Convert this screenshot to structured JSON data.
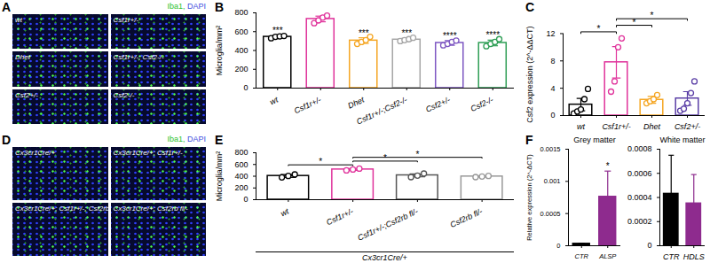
{
  "images": [
    {
      "panel_label": "A",
      "stain": [
        {
          "text": "Iba1,",
          "color": "#2fbf2f"
        },
        {
          "text": "DAPI",
          "color": "#3f4fe0"
        }
      ],
      "tiles": [
        "wt",
        "Csf1r+/-",
        "Dhet",
        "Csf1r+/-; Csf2-/-",
        "Csf2+/-",
        "Csf2-/-"
      ]
    },
    {
      "panel_label": "D",
      "stain": [
        {
          "text": "Iba1,",
          "color": "#2fbf2f"
        },
        {
          "text": "DAPI",
          "color": "#3f4fe0"
        }
      ],
      "tiles": [
        "Cx3cr1Cre/+",
        "Cx3cr1Cre/+; Csf1r+/-",
        "Cx3cr1Cre/+; Csf1r+/-; Csf2rb fl/-",
        "Cx3cr1Cre/+; Csf2rb fl/-"
      ]
    }
  ],
  "chart_data": [
    {
      "panel_label": "B",
      "type": "bar",
      "categories": [
        "wt",
        "Csf1r+/-",
        "Dhet",
        "Csf1r+/-;Csf2-/-",
        "Csf2+/-",
        "Csf2-/-"
      ],
      "values": [
        545,
        735,
        505,
        515,
        480,
        480
      ],
      "errors": [
        15,
        30,
        30,
        15,
        25,
        30
      ],
      "points": [
        [
          530,
          545,
          550,
          555
        ],
        [
          690,
          720,
          750,
          770
        ],
        [
          470,
          490,
          510,
          545
        ],
        [
          500,
          510,
          520,
          535
        ],
        [
          455,
          470,
          490,
          505
        ],
        [
          445,
          470,
          490,
          520
        ]
      ],
      "colors": [
        "#000000",
        "#e0339b",
        "#f5a623",
        "#a6a6a6",
        "#7e57c2",
        "#2e9e55"
      ],
      "significance": [
        "***",
        null,
        "***",
        "***",
        "****",
        "****"
      ],
      "y_label": "Microglia/mm²",
      "ylim": [
        0,
        800
      ],
      "yticks": [
        0,
        200,
        400,
        600,
        800
      ]
    },
    {
      "panel_label": "C",
      "type": "bar",
      "categories": [
        "wt",
        "Csf1r+/-",
        "Dhet",
        "Csf2+/-"
      ],
      "values": [
        1.6,
        7.8,
        2.3,
        2.5
      ],
      "errors": [
        0.9,
        2.3,
        0.5,
        1.0
      ],
      "points": [
        [
          0.3,
          0.6,
          0.9,
          2.4,
          3.9
        ],
        [
          3.5,
          5,
          10,
          11.3
        ],
        [
          1.8,
          2.1,
          2.4,
          3.0
        ],
        [
          0.7,
          1.0,
          1.8,
          3.3,
          5.0
        ]
      ],
      "colors": [
        "#000000",
        "#e0339b",
        "#f5a623",
        "#5b3fa6"
      ],
      "comparisons": [
        {
          "from": "wt",
          "to": "Csf1r+/-",
          "label": "*"
        },
        {
          "from": "Csf1r+/-",
          "to": "Dhet",
          "label": "*"
        },
        {
          "from": "Csf1r+/-",
          "to": "Csf2+/-",
          "label": "*"
        }
      ],
      "y_label": "Csf2 expression (2^-ΔΔCT)",
      "ylim": [
        0,
        12
      ],
      "yticks": [
        0,
        4,
        8,
        12
      ]
    },
    {
      "panel_label": "E",
      "type": "bar",
      "categories": [
        "wt",
        "Csf1r+/-",
        "Csf1r+/-;Csf2rb fl/-",
        "Csf2rb fl/-"
      ],
      "group_label": "Cx3cr1Cre/+",
      "values": [
        405,
        515,
        415,
        395
      ],
      "errors": [
        25,
        15,
        25,
        10
      ],
      "points": [
        [
          380,
          405,
          430
        ],
        [
          500,
          515,
          530
        ],
        [
          385,
          410,
          445
        ],
        [
          385,
          395,
          405
        ]
      ],
      "colors": [
        "#000000",
        "#e0339b",
        "#555555",
        "#999999"
      ],
      "comparisons": [
        {
          "from": "wt",
          "to": "Csf1r+/-",
          "label": "*"
        },
        {
          "from": "Csf1r+/-",
          "to": "Csf1r+/-;Csf2rb fl/-",
          "label": "*"
        },
        {
          "from": "Csf1r+/-",
          "to": "Csf2rb fl/-",
          "label": "*"
        }
      ],
      "y_label": "Microglia/mm²",
      "ylim": [
        0,
        800
      ],
      "yticks": [
        0,
        200,
        400,
        600,
        800
      ]
    },
    {
      "panel_label": "F",
      "type": "bar",
      "title": "Grey matter",
      "categories": [
        "CTR",
        "ALSP"
      ],
      "values": [
        3e-05,
        0.00076
      ],
      "errors": [
        1e-05,
        0.0004
      ],
      "colors": [
        "#000000",
        "#8e2b8e"
      ],
      "significance": [
        null,
        "*"
      ],
      "y_label": "Relative expression (2^-ΔCT)",
      "ylim": [
        0,
        0.0015
      ],
      "yticks": [
        0,
        0.0005,
        0.001,
        0.0015
      ]
    },
    {
      "type": "bar",
      "title": "White matter",
      "categories": [
        "CTR",
        "HDLS"
      ],
      "values": [
        0.00043,
        0.00035
      ],
      "errors": [
        0.00032,
        0.00024
      ],
      "colors": [
        "#000000",
        "#8e2b8e"
      ],
      "ylim": [
        0,
        0.0008
      ],
      "yticks": [
        0,
        0.0002,
        0.0004,
        0.0006,
        0.0008
      ]
    }
  ]
}
